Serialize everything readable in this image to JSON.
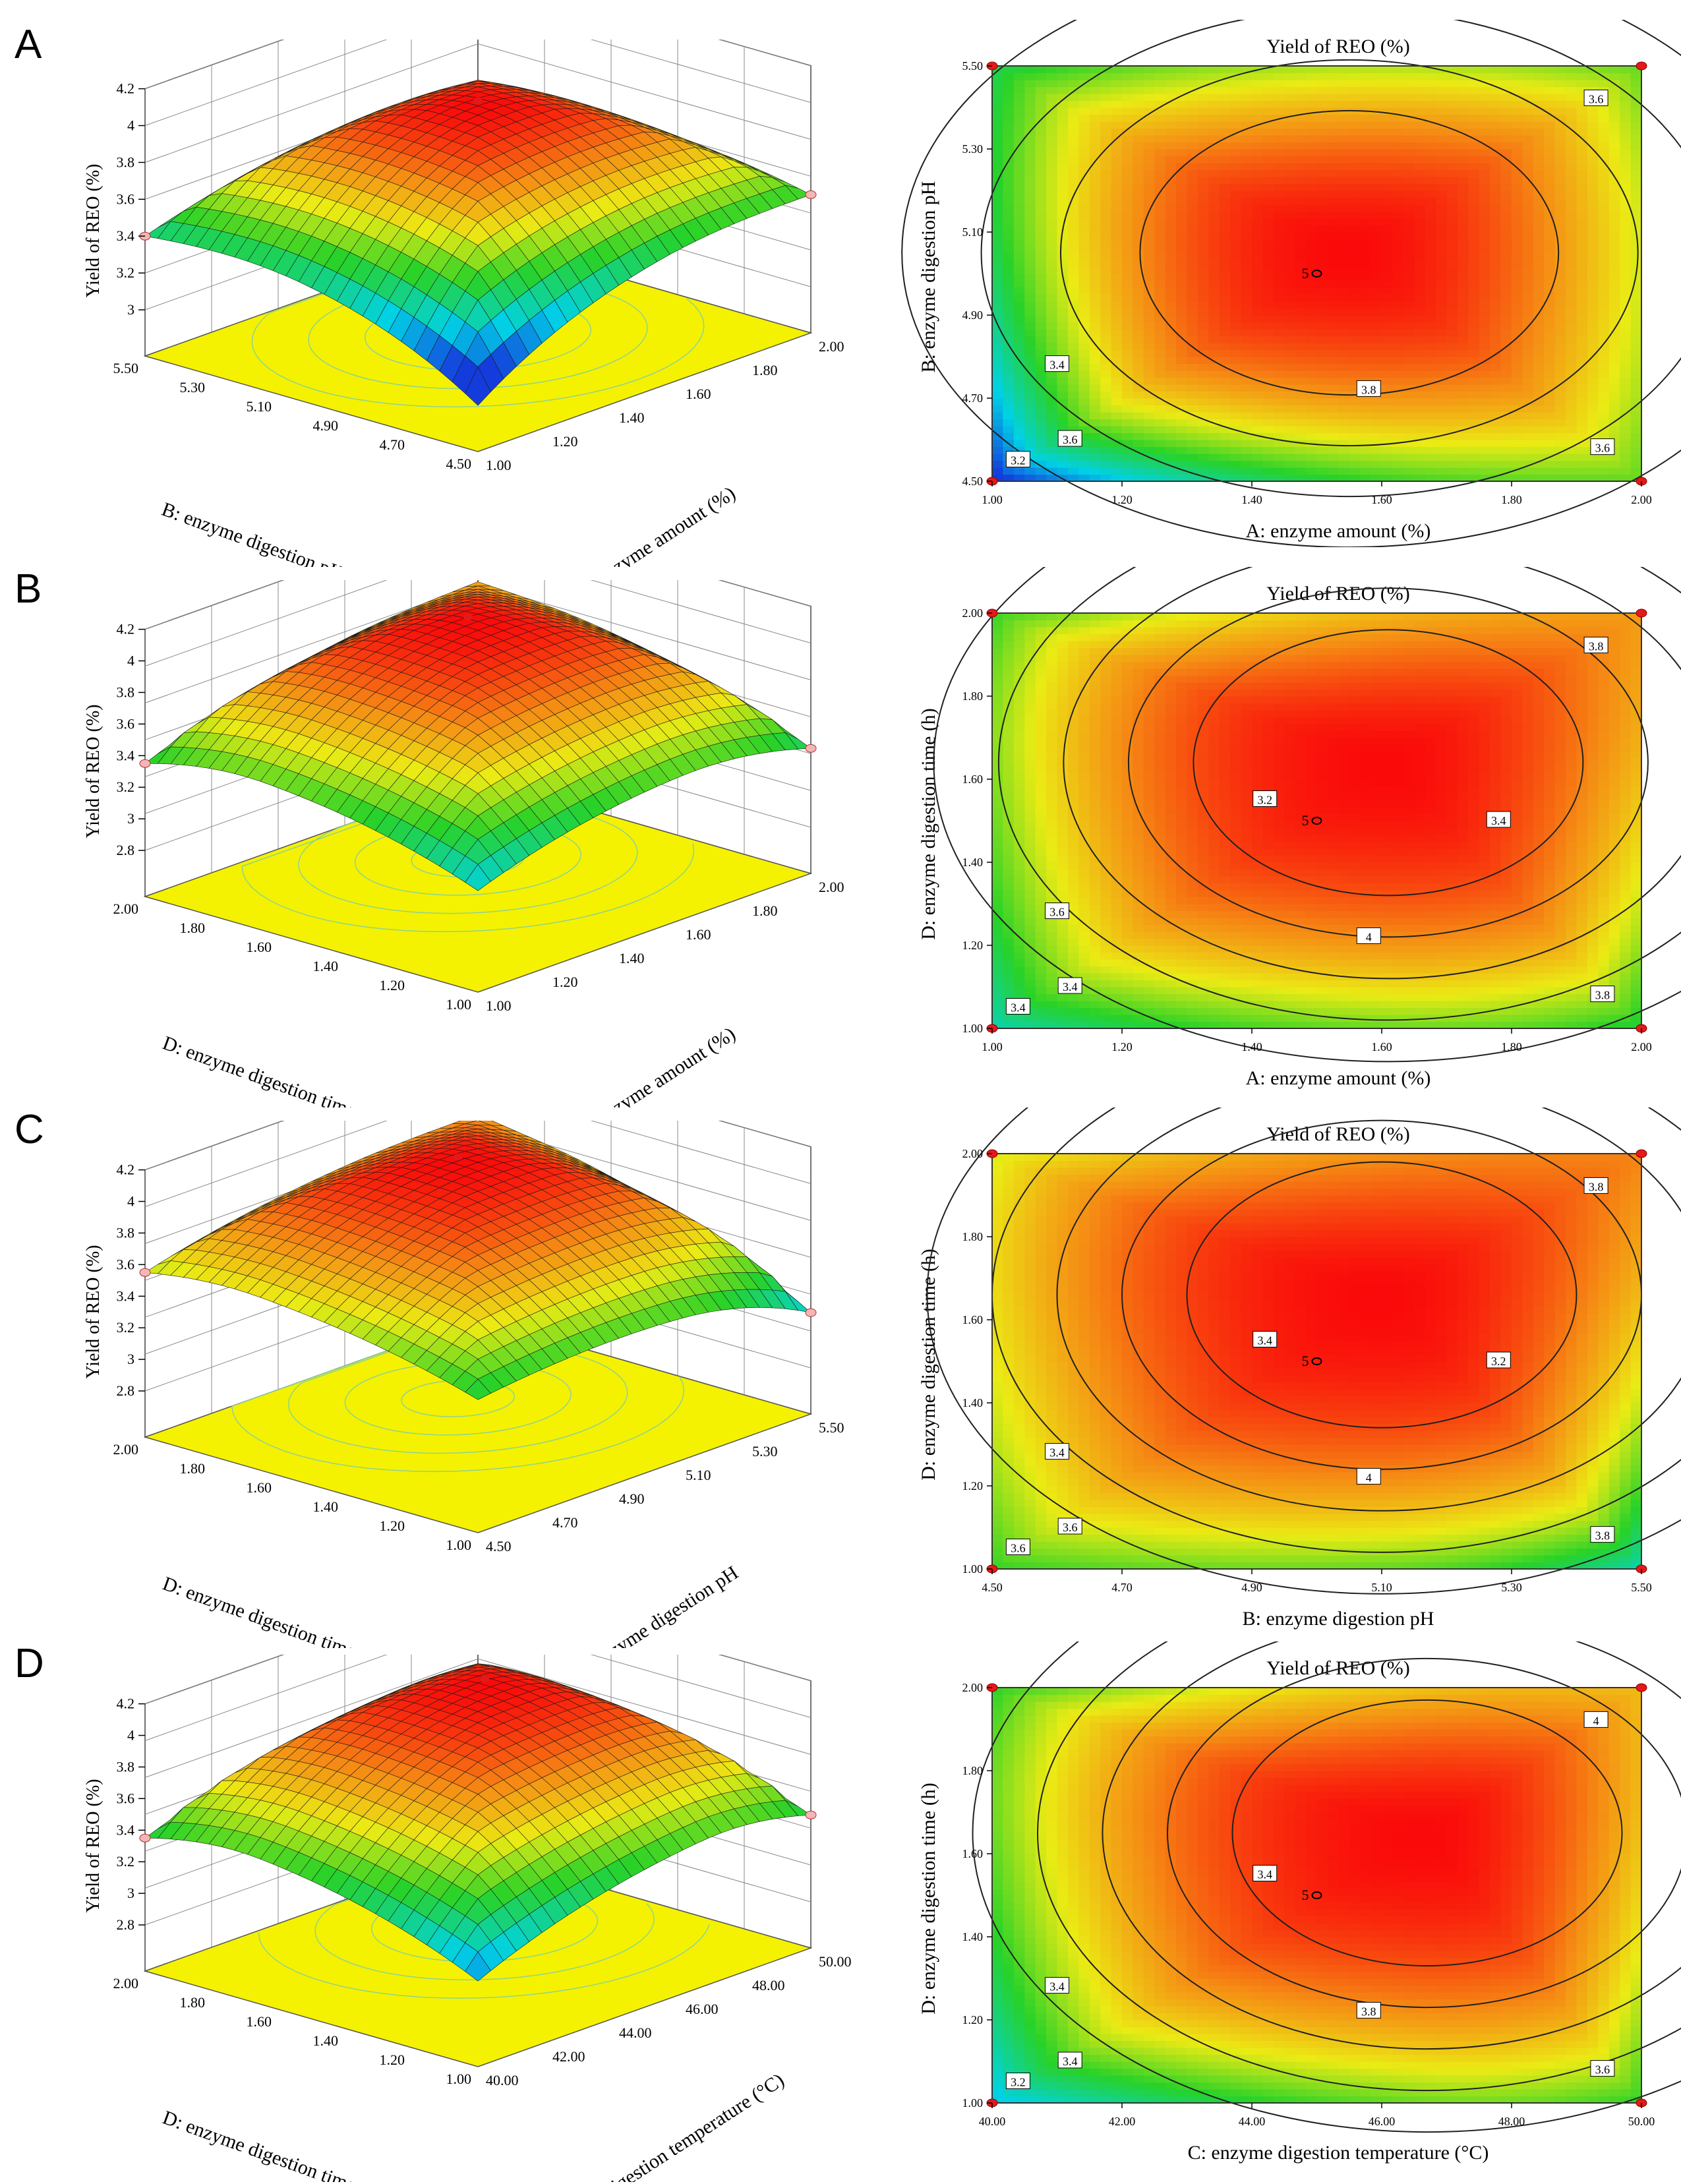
{
  "panels": [
    {
      "letter": "A",
      "surface": {
        "zlabel": "Yield of REO (%)",
        "zticks": [
          "4.2",
          "4",
          "3.8",
          "3.6",
          "3.4",
          "3.2",
          "3"
        ],
        "left_axis": {
          "label": "B: enzyme digestion pH",
          "ticks": [
            "5.50",
            "5.30",
            "5.10",
            "4.90",
            "4.70",
            "4.50"
          ]
        },
        "right_axis": {
          "label": "A: enzyme amount (%)",
          "ticks": [
            "1.00",
            "1.20",
            "1.40",
            "1.60",
            "1.80",
            "2.00"
          ]
        }
      },
      "contour": {
        "title": "Yield of REO (%)",
        "xlabel": "A: enzyme amount (%)",
        "ylabel": "B: enzyme digestion pH",
        "xticks": [
          "1.00",
          "1.20",
          "1.40",
          "1.60",
          "1.80",
          "2.00"
        ],
        "yticks": [
          "4.50",
          "4.70",
          "4.90",
          "5.10",
          "5.30",
          "5.50"
        ],
        "center_label": "5",
        "contour_labels": [
          "3.6",
          "3.6",
          "3.8",
          "3.6",
          "3.4",
          "3.2"
        ]
      }
    },
    {
      "letter": "B",
      "surface": {
        "zlabel": "Yield of REO (%)",
        "zticks": [
          "4.2",
          "4",
          "3.8",
          "3.6",
          "3.4",
          "3.2",
          "3",
          "2.8"
        ],
        "left_axis": {
          "label": "D: enzyme digestion time (h)",
          "ticks": [
            "2.00",
            "1.80",
            "1.60",
            "1.40",
            "1.20",
            "1.00"
          ]
        },
        "right_axis": {
          "label": "A: enzyme amount (%)",
          "ticks": [
            "1.00",
            "1.20",
            "1.40",
            "1.60",
            "1.80",
            "2.00"
          ]
        }
      },
      "contour": {
        "title": "Yield of REO (%)",
        "xlabel": "A: enzyme amount (%)",
        "ylabel": "D: enzyme digestion time (h)",
        "xticks": [
          "1.00",
          "1.20",
          "1.40",
          "1.60",
          "1.80",
          "2.00"
        ],
        "yticks": [
          "1.00",
          "1.20",
          "1.40",
          "1.60",
          "1.80",
          "2.00"
        ],
        "center_label": "5",
        "contour_labels": [
          "3.4",
          "3.8",
          "4",
          "3.8",
          "3.6",
          "3.4",
          "3.2",
          "3.4"
        ]
      }
    },
    {
      "letter": "C",
      "surface": {
        "zlabel": "Yield of REO (%)",
        "zticks": [
          "4.2",
          "4",
          "3.8",
          "3.6",
          "3.4",
          "3.2",
          "3",
          "2.8"
        ],
        "left_axis": {
          "label": "D: enzyme digestion time (h)",
          "ticks": [
            "2.00",
            "1.80",
            "1.60",
            "1.40",
            "1.20",
            "1.00"
          ]
        },
        "right_axis": {
          "label": "B: enzyme digestion pH",
          "ticks": [
            "4.50",
            "4.70",
            "4.90",
            "5.10",
            "5.30",
            "5.50"
          ]
        }
      },
      "contour": {
        "title": "Yield of REO (%)",
        "xlabel": "B: enzyme digestion pH",
        "ylabel": "D: enzyme digestion time (h)",
        "xticks": [
          "4.50",
          "4.70",
          "4.90",
          "5.10",
          "5.30",
          "5.50"
        ],
        "yticks": [
          "1.00",
          "1.20",
          "1.40",
          "1.60",
          "1.80",
          "2.00"
        ],
        "center_label": "5",
        "contour_labels": [
          "3.6",
          "3.8",
          "4",
          "3.8",
          "3.4",
          "3.6",
          "3.4",
          "3.2"
        ]
      }
    },
    {
      "letter": "D",
      "surface": {
        "zlabel": "Yield of REO (%)",
        "zticks": [
          "4.2",
          "4",
          "3.8",
          "3.6",
          "3.4",
          "3.2",
          "3",
          "2.8"
        ],
        "left_axis": {
          "label": "D: enzyme digestion time (h)",
          "ticks": [
            "2.00",
            "1.80",
            "1.60",
            "1.40",
            "1.20",
            "1.00"
          ]
        },
        "right_axis": {
          "label": "C: enzyme digestion temperature (°C)",
          "ticks": [
            "40.00",
            "42.00",
            "44.00",
            "46.00",
            "48.00",
            "50.00"
          ]
        }
      },
      "contour": {
        "title": "Yield of REO (%)",
        "xlabel": "C: enzyme digestion temperature (°C)",
        "ylabel": "D: enzyme digestion time (h)",
        "xticks": [
          "40.00",
          "42.00",
          "44.00",
          "46.00",
          "48.00",
          "50.00"
        ],
        "yticks": [
          "1.00",
          "1.20",
          "1.40",
          "1.60",
          "1.80",
          "2.00"
        ],
        "center_label": "5",
        "contour_labels": [
          "3.4",
          "4",
          "3.8",
          "3.6",
          "3.4",
          "3.2",
          "3.4"
        ]
      }
    }
  ],
  "chart_data": [
    {
      "type": "surface+contour",
      "title": "Yield of REO (%)",
      "x": {
        "label": "A: enzyme amount (%)",
        "range": [
          1.0,
          2.0
        ]
      },
      "y": {
        "label": "B: enzyme digestion pH",
        "range": [
          4.5,
          5.5
        ]
      },
      "z": {
        "label": "Yield of REO (%)",
        "range": [
          3.0,
          4.2
        ]
      },
      "optimum": {
        "x": 1.55,
        "y": 5.05,
        "z": 4.0
      },
      "contour_levels": [
        3.2,
        3.4,
        3.6,
        3.8
      ],
      "corner_values": {
        "x_low_y_low": 3.0,
        "x_high_y_low": 3.5,
        "x_low_y_high": 3.4,
        "x_high_y_high": 3.5
      },
      "design_points": 5
    },
    {
      "type": "surface+contour",
      "title": "Yield of REO (%)",
      "x": {
        "label": "A: enzyme amount (%)",
        "range": [
          1.0,
          2.0
        ]
      },
      "y": {
        "label": "D: enzyme digestion time (h)",
        "range": [
          1.0,
          2.0
        ]
      },
      "z": {
        "label": "Yield of REO (%)",
        "range": [
          2.8,
          4.2
        ]
      },
      "optimum": {
        "x": 1.61,
        "y": 1.64,
        "z": 4.02
      },
      "contour_levels": [
        3.2,
        3.4,
        3.6,
        3.8,
        4.0
      ],
      "corner_values": {
        "x_low_y_low": 3.15,
        "x_high_y_low": 3.3,
        "x_low_y_high": 3.35,
        "x_high_y_high": 3.75
      },
      "design_points": 5
    },
    {
      "type": "surface+contour",
      "title": "Yield of REO (%)",
      "x": {
        "label": "B: enzyme digestion pH",
        "range": [
          4.5,
          5.5
        ]
      },
      "y": {
        "label": "D: enzyme digestion time (h)",
        "range": [
          1.0,
          2.0
        ]
      },
      "z": {
        "label": "Yield of REO (%)",
        "range": [
          2.8,
          4.2
        ]
      },
      "optimum": {
        "x": 5.1,
        "y": 1.66,
        "z": 4.02
      },
      "contour_levels": [
        3.2,
        3.4,
        3.6,
        3.8,
        4.0
      ],
      "corner_values": {
        "x_low_y_low": 3.35,
        "x_high_y_low": 3.15,
        "x_low_y_high": 3.55,
        "x_high_y_high": 3.8
      },
      "design_points": 5
    },
    {
      "type": "surface+contour",
      "title": "Yield of REO (%)",
      "x": {
        "label": "C: enzyme digestion temperature (°C)",
        "range": [
          40.0,
          50.0
        ]
      },
      "y": {
        "label": "D: enzyme digestion time (h)",
        "range": [
          1.0,
          2.0
        ]
      },
      "z": {
        "label": "Yield of REO (%)",
        "range": [
          2.8,
          4.2
        ]
      },
      "optimum": {
        "x": 46.7,
        "y": 1.65,
        "z": 4.05
      },
      "contour_levels": [
        3.2,
        3.4,
        3.6,
        3.8,
        4.0
      ],
      "corner_values": {
        "x_low_y_low": 3.05,
        "x_high_y_low": 3.35,
        "x_low_y_high": 3.35,
        "x_high_y_high": 3.7
      },
      "design_points": 5
    }
  ]
}
